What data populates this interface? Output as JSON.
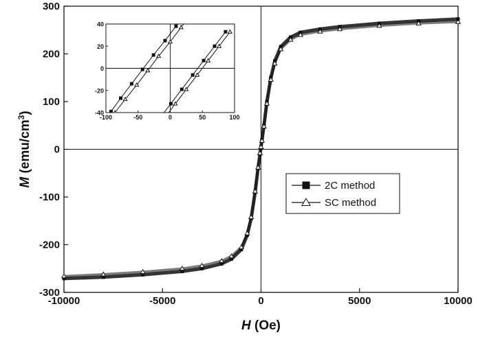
{
  "chart_data": [
    {
      "type": "line",
      "title": "",
      "xlabel": {
        "symbol": "H",
        "unit": " (Oe)"
      },
      "ylabel": {
        "symbol": "M",
        "unit": " (emu/cm",
        "sup": "3",
        "close": ")"
      },
      "xlim": [
        -10000,
        10000
      ],
      "ylim": [
        -300,
        300
      ],
      "xticks": [
        "-10000",
        "-5000",
        "0",
        "5000",
        "10000"
      ],
      "yticks": [
        "-300",
        "-200",
        "-100",
        "0",
        "100",
        "200",
        "300"
      ],
      "legend_position": "center-right",
      "series": [
        {
          "name": "2C method",
          "marker": "filled-square",
          "color": "#111111",
          "x": [
            -10000,
            -8000,
            -6000,
            -4000,
            -3000,
            -2000,
            -1500,
            -1000,
            -700,
            -500,
            -300,
            -150,
            -50,
            0,
            50,
            150,
            300,
            500,
            700,
            1000,
            1500,
            2000,
            3000,
            4000,
            6000,
            8000,
            10000
          ],
          "y": [
            -271,
            -268,
            -263,
            -256,
            -250,
            -240,
            -230,
            -210,
            -180,
            -145,
            -90,
            -40,
            -10,
            5,
            20,
            50,
            100,
            150,
            185,
            215,
            235,
            245,
            252,
            257,
            264,
            269,
            273
          ]
        },
        {
          "name": "SC method",
          "marker": "open-triangle",
          "color": "#111111",
          "x": [
            -10000,
            -8000,
            -6000,
            -4000,
            -3000,
            -2000,
            -1500,
            -1000,
            -700,
            -500,
            -300,
            -150,
            -50,
            0,
            50,
            150,
            300,
            500,
            700,
            1000,
            1500,
            2000,
            3000,
            4000,
            6000,
            8000,
            10000
          ],
          "y": [
            -266,
            -262,
            -257,
            -250,
            -244,
            -234,
            -224,
            -205,
            -176,
            -142,
            -88,
            -38,
            -8,
            5,
            18,
            48,
            96,
            146,
            180,
            210,
            230,
            240,
            247,
            252,
            259,
            264,
            267
          ]
        }
      ]
    },
    {
      "type": "line",
      "title": "",
      "xlim": [
        -100,
        100
      ],
      "ylim": [
        -40,
        40
      ],
      "xticks": [
        "-100",
        "-50",
        "0",
        "50",
        "100"
      ],
      "yticks": [
        "-40",
        "-20",
        "0",
        "20",
        "40"
      ],
      "series": [
        {
          "name": "2C method",
          "marker": "filled-square",
          "branches": [
            {
              "x": [
                -92,
                -77,
                -60,
                -43,
                -26,
                -8,
                9,
                26
              ],
              "y": [
                -39,
                -27,
                -14,
                -1,
                12,
                25,
                38,
                51
              ]
            },
            {
              "x": [
                -33,
                -16,
                1,
                18,
                35,
                52,
                69,
                86
              ],
              "y": [
                -58,
                -45,
                -32,
                -19,
                -6,
                7,
                20,
                33
              ]
            }
          ]
        },
        {
          "name": "SC method",
          "marker": "open-triangle",
          "branches": [
            {
              "x": [
                -86,
                -70,
                -52,
                -35,
                -18,
                0,
                17,
                34
              ],
              "y": [
                -40,
                -28,
                -15,
                -2,
                11,
                24,
                37,
                50
              ]
            },
            {
              "x": [
                -26,
                -9,
                8,
                25,
                42,
                59,
                76,
                93
              ],
              "y": [
                -58,
                -45,
                -32,
                -19,
                -6,
                7,
                20,
                33
              ]
            }
          ]
        }
      ]
    }
  ]
}
